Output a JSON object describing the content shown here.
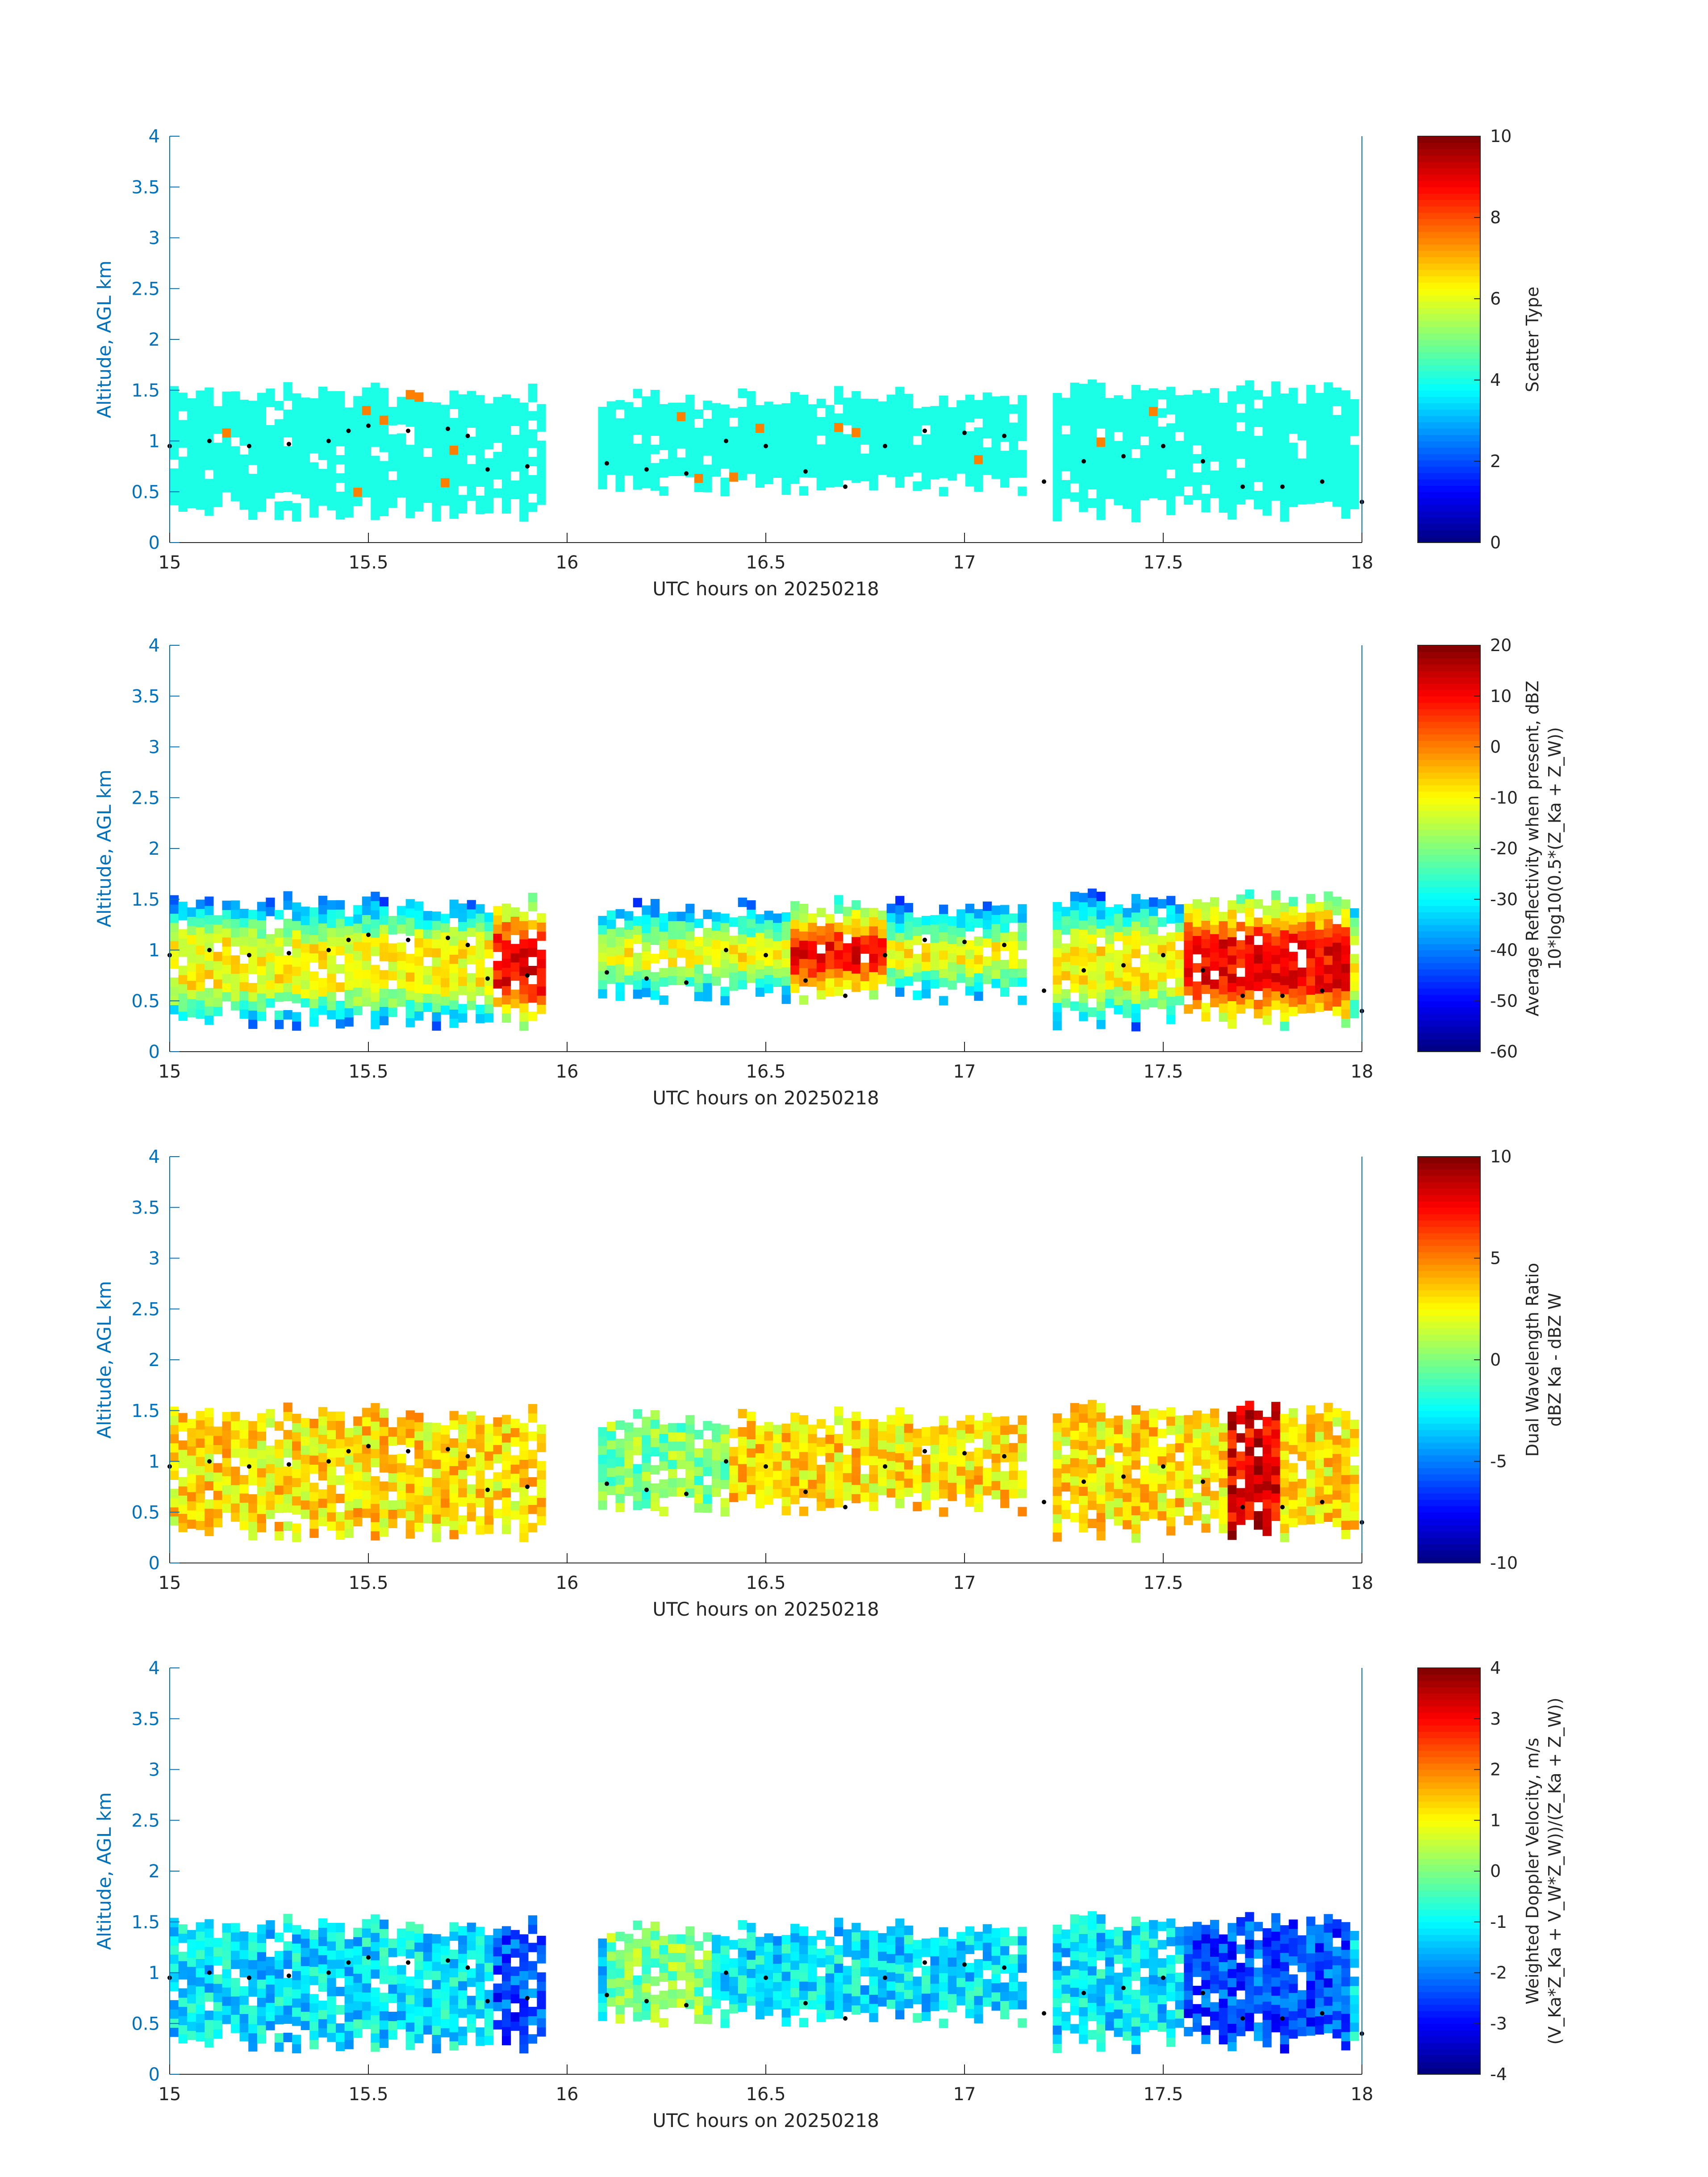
{
  "chart_data": [
    {
      "type": "heatmap",
      "xlabel": "UTC hours on 20250218",
      "ylabel": "Altitude, AGL km",
      "xlim": [
        15,
        18
      ],
      "ylim": [
        0,
        4
      ],
      "xticks": [
        "15",
        "15.5",
        "16",
        "16.5",
        "17",
        "17.5",
        "18"
      ],
      "yticks": [
        "0",
        "0.5",
        "1",
        "1.5",
        "2",
        "2.5",
        "3",
        "3.5",
        "4"
      ],
      "colorbar": {
        "label_lines": [
          "Scatter Type"
        ],
        "range": [
          0,
          10
        ],
        "ticks": [
          "0",
          "2",
          "4",
          "6",
          "8",
          "10"
        ]
      },
      "field": "scatter_type"
    },
    {
      "type": "heatmap",
      "xlabel": "UTC hours on 20250218",
      "ylabel": "Altitude, AGL km",
      "xlim": [
        15,
        18
      ],
      "ylim": [
        0,
        4
      ],
      "xticks": [
        "15",
        "15.5",
        "16",
        "16.5",
        "17",
        "17.5",
        "18"
      ],
      "yticks": [
        "0",
        "0.5",
        "1",
        "1.5",
        "2",
        "2.5",
        "3",
        "3.5",
        "4"
      ],
      "colorbar": {
        "label_lines": [
          "Average Reflectivity when present, dBZ",
          "10*log10(0.5*(Z_Ka + Z_W))"
        ],
        "range": [
          -60,
          20
        ],
        "ticks": [
          "-60",
          "-50",
          "-40",
          "-30",
          "-20",
          "-10",
          "0",
          "10",
          "20"
        ]
      },
      "field": "reflectivity"
    },
    {
      "type": "heatmap",
      "xlabel": "UTC hours on 20250218",
      "ylabel": "Altitude, AGL km",
      "xlim": [
        15,
        18
      ],
      "ylim": [
        0,
        4
      ],
      "xticks": [
        "15",
        "15.5",
        "16",
        "16.5",
        "17",
        "17.5",
        "18"
      ],
      "yticks": [
        "0",
        "0.5",
        "1",
        "1.5",
        "2",
        "2.5",
        "3",
        "3.5",
        "4"
      ],
      "colorbar": {
        "label_lines": [
          "Dual Wavelength Ratio",
          "dBZ Ka - dBZ W"
        ],
        "range": [
          -10,
          10
        ],
        "ticks": [
          "-10",
          "-5",
          "0",
          "5",
          "10"
        ]
      },
      "field": "dwr"
    },
    {
      "type": "heatmap",
      "xlabel": "UTC hours on 20250218",
      "ylabel": "Altitude, AGL km",
      "xlim": [
        15,
        18
      ],
      "ylim": [
        0,
        4
      ],
      "xticks": [
        "15",
        "15.5",
        "16",
        "16.5",
        "17",
        "17.5",
        "18"
      ],
      "yticks": [
        "0",
        "0.5",
        "1",
        "1.5",
        "2",
        "2.5",
        "3",
        "3.5",
        "4"
      ],
      "colorbar": {
        "label_lines": [
          "Weighted Doppler Velocity, m/s",
          "(V_Ka*Z_Ka + V_W*Z_W))/(Z_Ka + Z_W))"
        ],
        "range": [
          -4,
          4
        ],
        "ticks": [
          "-4",
          "-3",
          "-2",
          "-1",
          "0",
          "1",
          "2",
          "3",
          "4"
        ]
      },
      "field": "velocity"
    }
  ],
  "cloud": {
    "x_step": 0.022,
    "y_step": 0.09,
    "segments": [
      {
        "x": [
          15.0,
          15.95
        ],
        "top": 1.42,
        "bottom": 0.2
      },
      {
        "x": [
          16.08,
          17.15
        ],
        "top": 1.38,
        "bottom": 0.45
      },
      {
        "x": [
          17.22,
          18.0
        ],
        "top": 1.44,
        "bottom": 0.2
      }
    ]
  },
  "cloud_base": [
    [
      15.0,
      0.95
    ],
    [
      15.1,
      1.0
    ],
    [
      15.2,
      0.95
    ],
    [
      15.3,
      0.97
    ],
    [
      15.4,
      1.0
    ],
    [
      15.45,
      1.1
    ],
    [
      15.5,
      1.15
    ],
    [
      15.6,
      1.1
    ],
    [
      15.7,
      1.12
    ],
    [
      15.75,
      1.05
    ],
    [
      15.8,
      0.72
    ],
    [
      15.9,
      0.75
    ],
    [
      16.1,
      0.78
    ],
    [
      16.2,
      0.72
    ],
    [
      16.3,
      0.68
    ],
    [
      16.4,
      1.0
    ],
    [
      16.5,
      0.95
    ],
    [
      16.6,
      0.7
    ],
    [
      16.7,
      0.55
    ],
    [
      16.8,
      0.95
    ],
    [
      16.9,
      1.1
    ],
    [
      17.0,
      1.08
    ],
    [
      17.1,
      1.05
    ],
    [
      17.2,
      0.6
    ],
    [
      17.3,
      0.8
    ],
    [
      17.4,
      0.85
    ],
    [
      17.5,
      0.95
    ],
    [
      17.6,
      0.8
    ],
    [
      17.7,
      0.55
    ],
    [
      17.8,
      0.55
    ],
    [
      17.9,
      0.6
    ],
    [
      18.0,
      0.4
    ]
  ]
}
